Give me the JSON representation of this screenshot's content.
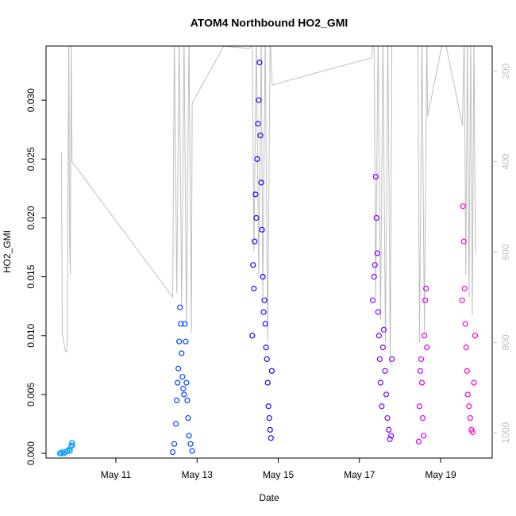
{
  "chart_data": {
    "type": "scatter",
    "title": "ATOM4 Northbound HO2_GMI",
    "x_label": "Date",
    "y_label": "HO2_GMI",
    "xlim": [
      9.28,
      20.27
    ],
    "xticks": [
      {
        "value": 11,
        "label": "May 11"
      },
      {
        "value": 13,
        "label": "May 13"
      },
      {
        "value": 15,
        "label": "May 15"
      },
      {
        "value": 17,
        "label": "May 17"
      },
      {
        "value": 19,
        "label": "May 19"
      }
    ],
    "ylim": [
      -0.0004,
      0.0346
    ],
    "yticks": [
      {
        "value": 0,
        "label": "0.000"
      },
      {
        "value": 0.005,
        "label": "0.005"
      },
      {
        "value": 0.01,
        "label": "0.010"
      },
      {
        "value": 0.015,
        "label": "0.015"
      },
      {
        "value": 0.02,
        "label": "0.020"
      },
      {
        "value": 0.025,
        "label": "0.025"
      },
      {
        "value": 0.03,
        "label": "0.030"
      }
    ],
    "y2lim": [
      1056,
      144
    ],
    "y2ticks": [
      200,
      400,
      600,
      800,
      1000
    ],
    "series": [
      {
        "color": "#bebebe",
        "type": "line",
        "axis": "y2",
        "x": [
          9.66,
          9.68,
          9.72,
          9.76,
          9.8,
          9.84,
          9.86,
          9.88,
          9.9,
          9.92,
          12.4,
          12.44,
          12.5,
          12.56,
          12.62,
          12.68,
          12.74,
          12.8,
          12.86,
          12.88,
          13.66,
          14.3,
          14.36,
          14.4,
          14.46,
          14.52,
          14.58,
          14.62,
          14.68,
          14.74,
          14.8,
          14.85,
          17.3,
          17.36,
          17.4,
          17.46,
          17.52,
          17.58,
          17.64,
          17.7,
          17.76,
          17.8,
          18.44,
          18.48,
          18.54,
          18.6,
          18.66,
          18.68,
          19.08,
          19.54,
          19.58,
          19.62,
          19.66,
          19.7,
          19.74,
          19.78,
          19.82,
          19.86
        ],
        "values": [
          380,
          780,
          800,
          820,
          820,
          120,
          580,
          650,
          120,
          400,
          700,
          120,
          690,
          120,
          720,
          120,
          760,
          120,
          780,
          270,
          144,
          150,
          120,
          600,
          120,
          650,
          120,
          700,
          120,
          800,
          120,
          230,
          170,
          120,
          700,
          120,
          750,
          120,
          800,
          120,
          850,
          120,
          120,
          800,
          120,
          780,
          120,
          300,
          120,
          320,
          120,
          650,
          120,
          700,
          120,
          740,
          120,
          600
        ]
      },
      {
        "color": "#0099ff",
        "x": [
          9.62,
          9.65,
          9.68,
          9.72,
          9.76,
          9.8,
          9.84,
          9.87,
          9.9,
          9.92,
          9.93
        ],
        "values": [
          0.0,
          0.0,
          0.0001,
          0.0,
          0.0001,
          0.0002,
          0.0003,
          0.0002,
          0.0006,
          0.0009,
          0.0007
        ]
      },
      {
        "color": "#0044ff",
        "x": [
          12.4,
          12.44,
          12.48,
          12.5,
          12.52,
          12.54,
          12.56,
          12.58,
          12.6,
          12.62,
          12.64,
          12.66,
          12.68,
          12.7,
          12.72,
          12.74,
          12.76,
          12.78,
          12.8,
          12.84,
          12.88
        ],
        "values": [
          0.0001,
          0.0008,
          0.0025,
          0.0045,
          0.006,
          0.0072,
          0.0095,
          0.0124,
          0.011,
          0.0085,
          0.0065,
          0.0055,
          0.005,
          0.011,
          0.0095,
          0.006,
          0.0045,
          0.003,
          0.0015,
          0.0008,
          0.0002
        ]
      },
      {
        "color": "#2200ff",
        "x": [
          14.36,
          14.38,
          14.4,
          14.42,
          14.44,
          14.46,
          14.48,
          14.5,
          14.52,
          14.54,
          14.56,
          14.58,
          14.6,
          14.62,
          14.64,
          14.66,
          14.68,
          14.7,
          14.72,
          14.74,
          14.76,
          14.78,
          14.8,
          14.82,
          14.84
        ],
        "values": [
          0.01,
          0.016,
          0.014,
          0.018,
          0.022,
          0.02,
          0.025,
          0.028,
          0.03,
          0.0332,
          0.027,
          0.023,
          0.019,
          0.015,
          0.012,
          0.013,
          0.011,
          0.009,
          0.008,
          0.006,
          0.004,
          0.003,
          0.002,
          0.0013,
          0.007
        ]
      },
      {
        "color": "#8000ff",
        "x": [
          17.33,
          17.36,
          17.38,
          17.4,
          17.42,
          17.44,
          17.46,
          17.48,
          17.5,
          17.52,
          17.55,
          17.58,
          17.6,
          17.63,
          17.66,
          17.69,
          17.72,
          17.75,
          17.78,
          17.8
        ],
        "values": [
          0.013,
          0.015,
          0.016,
          0.0235,
          0.02,
          0.017,
          0.012,
          0.01,
          0.008,
          0.006,
          0.004,
          0.009,
          0.0105,
          0.007,
          0.005,
          0.003,
          0.002,
          0.0012,
          0.0015,
          0.008
        ]
      },
      {
        "color": "#d400ff",
        "x": [
          18.46,
          18.48,
          18.5,
          18.52,
          18.54,
          18.56,
          18.58,
          18.6,
          18.62,
          18.64,
          18.66
        ],
        "values": [
          0.001,
          0.004,
          0.007,
          0.008,
          0.006,
          0.003,
          0.0015,
          0.01,
          0.013,
          0.014,
          0.009
        ]
      },
      {
        "color": "#ff00cc",
        "x": [
          19.53,
          19.55,
          19.57,
          19.59,
          19.61,
          19.63,
          19.65,
          19.67,
          19.7,
          19.73,
          19.76,
          19.79,
          19.82,
          19.85
        ],
        "values": [
          0.013,
          0.021,
          0.018,
          0.014,
          0.011,
          0.009,
          0.007,
          0.005,
          0.004,
          0.003,
          0.002,
          0.0018,
          0.006,
          0.01
        ]
      }
    ]
  }
}
